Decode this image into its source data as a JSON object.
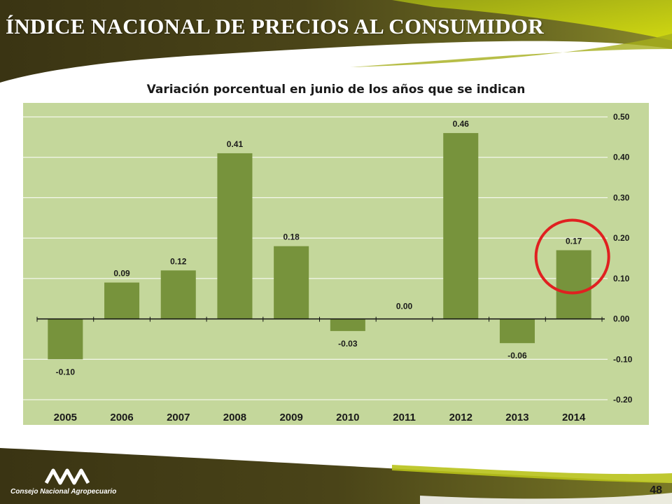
{
  "slide": {
    "title": "ÍNDICE NACIONAL DE PRECIOS AL CONSUMIDOR",
    "subtitle": "Variación porcentual en junio de los años que se indican",
    "organization": "Consejo Nacional Agropecuario",
    "page_number": "48"
  },
  "colors": {
    "banner_dark": "#3a3413",
    "banner_olive": "#7a7a26",
    "banner_lime": "#c8d400",
    "plot_background": "#c4d79b",
    "bar": "#77933c",
    "highlight_circle": "#e02020"
  },
  "chart_data": {
    "type": "bar",
    "title": "Variación porcentual en junio de los años que se indican",
    "categories": [
      "2005",
      "2006",
      "2007",
      "2008",
      "2009",
      "2010",
      "2011",
      "2012",
      "2013",
      "2014"
    ],
    "values": [
      -0.1,
      0.09,
      0.12,
      0.41,
      0.18,
      -0.03,
      0.0,
      0.46,
      -0.06,
      0.17
    ],
    "value_labels": [
      "-0.10",
      "0.09",
      "0.12",
      "0.41",
      "0.18",
      "-0.03",
      "0.00",
      "0.46",
      "-0.06",
      "0.17"
    ],
    "y_ticks": [
      "0.50",
      "0.40",
      "0.30",
      "0.20",
      "0.10",
      "0.00",
      "-0.10",
      "-0.20"
    ],
    "ylim": [
      -0.2,
      0.5
    ],
    "y_axis_position": "right",
    "grid": true,
    "legend": "none",
    "highlighted_category": "2014"
  }
}
